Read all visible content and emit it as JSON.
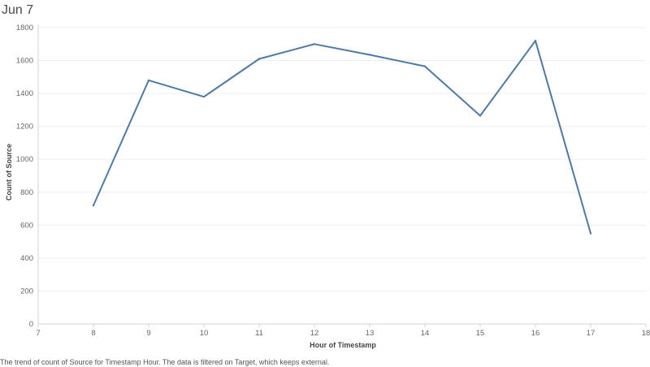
{
  "chart_data": {
    "type": "line",
    "title": "Jun 7",
    "xlabel": "Hour of Timestamp",
    "ylabel": "Count of Source",
    "caption": "The trend of count of Source for Timestamp Hour. The data is filtered on Target, which keeps external.",
    "x": [
      8,
      9,
      10,
      11,
      12,
      13,
      14,
      15,
      16,
      17
    ],
    "series": [
      {
        "values": [
          720,
          1480,
          1380,
          1610,
          1700,
          1635,
          1565,
          1265,
          1720,
          550
        ]
      }
    ],
    "xlim": [
      7,
      18
    ],
    "ylim": [
      0,
      1800
    ],
    "xticks": [
      "7",
      "8",
      "9",
      "10",
      "11",
      "12",
      "13",
      "14",
      "15",
      "16",
      "17",
      "18"
    ],
    "yticks": [
      "0",
      "200",
      "400",
      "600",
      "800",
      "1000",
      "1200",
      "1400",
      "1600",
      "1800"
    ],
    "grid": true,
    "line_color": "#4e79a7"
  }
}
